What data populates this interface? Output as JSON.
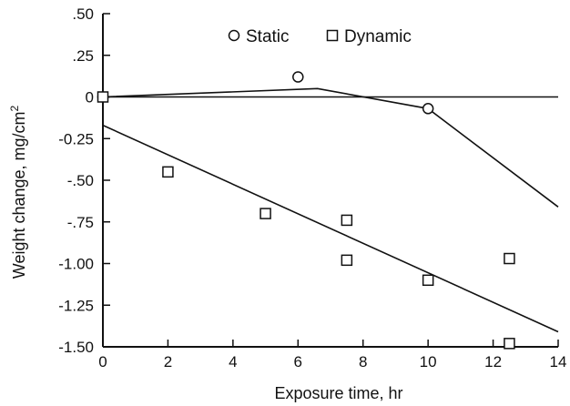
{
  "chart_data": {
    "type": "scatter",
    "xlabel": "Exposure time, hr",
    "ylabel": "Weight change, mg/cm",
    "ylabel_superscript": "2",
    "xlim": [
      0,
      14
    ],
    "ylim": [
      -1.5,
      0.5
    ],
    "xticks": [
      0,
      2,
      4,
      6,
      8,
      10,
      12,
      14
    ],
    "xtick_labels": [
      "0",
      "2",
      "4",
      "6",
      "8",
      "10",
      "12",
      "14"
    ],
    "yticks": [
      0.5,
      0.25,
      0,
      -0.25,
      -0.5,
      -0.75,
      -1.0,
      -1.25,
      -1.5
    ],
    "ytick_labels": [
      ".50",
      ".25",
      "0",
      "-0.25",
      "-.50",
      "-.75",
      "-1.00",
      "-1.25",
      "-1.50"
    ],
    "grid": false,
    "zero_line": true,
    "legend_position": "top-center",
    "series": [
      {
        "name": "Static",
        "marker": "circle",
        "points": [
          {
            "x": 0,
            "y": 0.0
          },
          {
            "x": 6,
            "y": 0.12
          },
          {
            "x": 10,
            "y": -0.07
          }
        ],
        "fit_line": [
          {
            "x": 0,
            "y": 0.0
          },
          {
            "x": 6.6,
            "y": 0.05
          },
          {
            "x": 10,
            "y": -0.07
          },
          {
            "x": 14,
            "y": -0.66
          }
        ]
      },
      {
        "name": "Dynamic",
        "marker": "square",
        "points": [
          {
            "x": 0,
            "y": 0.0
          },
          {
            "x": 2,
            "y": -0.45
          },
          {
            "x": 5,
            "y": -0.7
          },
          {
            "x": 7.5,
            "y": -0.74
          },
          {
            "x": 7.5,
            "y": -0.98
          },
          {
            "x": 10,
            "y": -1.1
          },
          {
            "x": 12.5,
            "y": -0.97
          },
          {
            "x": 12.5,
            "y": -1.48
          }
        ],
        "fit_line": [
          {
            "x": 0,
            "y": -0.17
          },
          {
            "x": 14,
            "y": -1.41
          }
        ]
      }
    ]
  }
}
